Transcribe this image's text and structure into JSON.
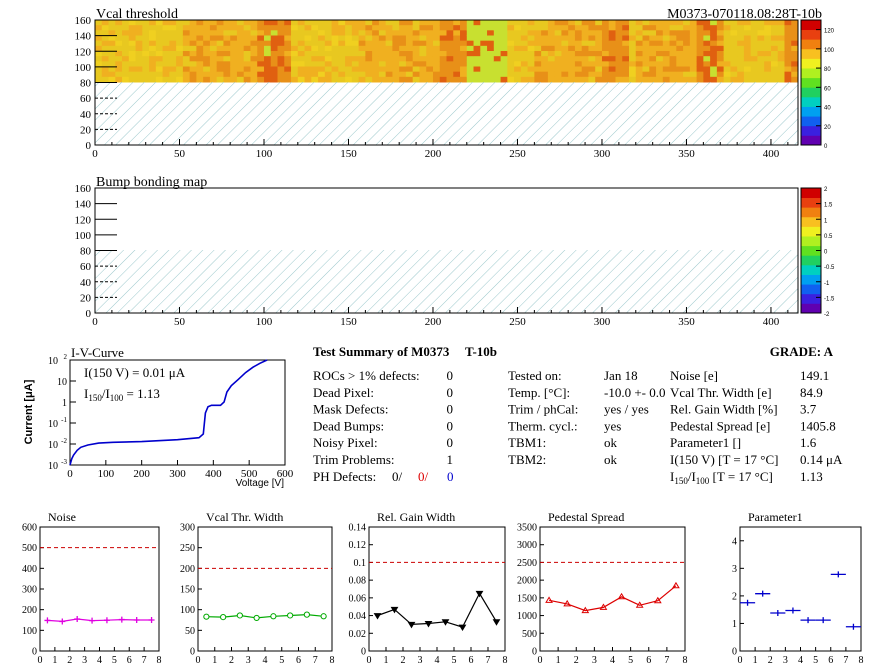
{
  "module_id": "M0373-070118.08:28T-10b",
  "colors": {
    "palette": [
      "#6000b0",
      "#3a20e0",
      "#1060f0",
      "#00a0f0",
      "#00d0c0",
      "#20d060",
      "#60e020",
      "#b0f020",
      "#f0f020",
      "#f8c020",
      "#f08010",
      "#e84010",
      "#d00000"
    ],
    "bump_band": "#20e040",
    "hatch": "#9cc8cc",
    "iv_line": "#0000cc",
    "noise": "#e000e0",
    "vcal": "#00aa00",
    "relgain": "#000000",
    "pedestal": "#dd0000",
    "param1": "#0000cc",
    "limit": "#cc0000"
  },
  "maps": {
    "vcal_title": "Vcal threshold",
    "bump_title": "Bump bonding map",
    "x_ticks": [
      "0",
      "50",
      "100",
      "150",
      "200",
      "250",
      "300",
      "350",
      "400"
    ],
    "y_ticks": [
      "0",
      "20",
      "40",
      "60",
      "80",
      "100",
      "120",
      "140",
      "160"
    ],
    "vcal_scale": [
      "0",
      "20",
      "40",
      "60",
      "80",
      "100",
      "120"
    ],
    "bump_scale": [
      "-2",
      "-1.5",
      "-1",
      "-0.5",
      "0",
      "0.5",
      "1",
      "1.5",
      "2"
    ]
  },
  "summary": {
    "title": "Test Summary of M0373",
    "id": "T-10b",
    "grade": "GRADE:  A",
    "left_rows": [
      {
        "label": "ROCs > 1% defects:",
        "value": "0"
      },
      {
        "label": "Dead Pixel:",
        "value": "0"
      },
      {
        "label": "Mask Defects:",
        "value": "0"
      },
      {
        "label": "Dead Bumps:",
        "value": "0"
      },
      {
        "label": "Noisy Pixel:",
        "value": "0"
      },
      {
        "label": "Trim Problems:",
        "value": "1"
      }
    ],
    "ph_label": "PH Defects:",
    "ph_values": [
      "0/",
      "0/",
      "0"
    ],
    "mid_rows": [
      {
        "label": "Tested on:",
        "value": "Jan 18"
      },
      {
        "label": "Temp. [°C]:",
        "value": "-10.0 +- 0.0"
      },
      {
        "label": "Trim / phCal:",
        "value": "yes / yes"
      },
      {
        "label": "Therm. cycl.:",
        "value": "yes"
      },
      {
        "label": "TBM1:",
        "value": "ok"
      },
      {
        "label": "TBM2:",
        "value": "ok"
      }
    ],
    "right_rows": [
      {
        "label": "Noise [e]",
        "value": "149.1"
      },
      {
        "label": "Vcal Thr. Width [e]",
        "value": "84.9"
      },
      {
        "label": "Rel. Gain Width [%]",
        "value": "3.7"
      },
      {
        "label": "Pedestal Spread [e]",
        "value": "1405.8"
      },
      {
        "label": "Parameter1 []",
        "value": "1.6"
      },
      {
        "label": "I(150 V)  [T = 17 °C]",
        "value": "0.14 μA"
      },
      {
        "label": "I150/I100  [T = 17 °C]",
        "value": "1.13"
      }
    ]
  },
  "chart_data": [
    {
      "type": "line",
      "title": "I-V-Curve",
      "xlabel": "Voltage [V]",
      "ylabel": "Current [μA]",
      "yscale": "log",
      "xlim": [
        0,
        600
      ],
      "ylim": [
        0.001,
        100
      ],
      "x_ticks": [
        "0",
        "100",
        "200",
        "300",
        "400",
        "500",
        "600"
      ],
      "y_ticks": [
        "10^-3",
        "10^-2",
        "10^-1",
        "1",
        "10",
        "10^2"
      ],
      "annotations": [
        "I(150 V) = 0.01 μA",
        "I150/I100 =  1.13"
      ],
      "series": [
        {
          "x": [
            0,
            5,
            10,
            20,
            30,
            50,
            80,
            120,
            200,
            300,
            360,
            372,
            378,
            385,
            395,
            420,
            430,
            438,
            450,
            470,
            490,
            510,
            530,
            550
          ],
          "y": [
            0.001,
            0.002,
            0.003,
            0.005,
            0.007,
            0.009,
            0.011,
            0.012,
            0.013,
            0.016,
            0.02,
            0.03,
            0.3,
            0.6,
            0.7,
            0.7,
            1.0,
            3,
            6,
            12,
            25,
            45,
            70,
            100
          ]
        }
      ]
    },
    {
      "type": "line",
      "title": "Noise",
      "x_ticks": [
        "0",
        "1",
        "2",
        "3",
        "4",
        "5",
        "6",
        "7",
        "8"
      ],
      "y_ticks": [
        "0",
        "100",
        "200",
        "300",
        "400",
        "500",
        "600"
      ],
      "xlim": [
        0,
        8
      ],
      "ylim": [
        0,
        600
      ],
      "limit": 500,
      "x": [
        0.5,
        1.5,
        2.5,
        3.5,
        4.5,
        5.5,
        6.5,
        7.5
      ],
      "values": [
        148,
        143,
        155,
        147,
        149,
        152,
        150,
        150
      ],
      "marker": "cross"
    },
    {
      "type": "line",
      "title": "Vcal Thr. Width",
      "x_ticks": [
        "0",
        "1",
        "2",
        "3",
        "4",
        "5",
        "6",
        "7",
        "8"
      ],
      "y_ticks": [
        "0",
        "50",
        "100",
        "150",
        "200",
        "250",
        "300"
      ],
      "xlim": [
        0,
        8
      ],
      "ylim": [
        0,
        300
      ],
      "limit": 200,
      "x": [
        0.5,
        1.5,
        2.5,
        3.5,
        4.5,
        5.5,
        6.5,
        7.5
      ],
      "values": [
        83,
        82,
        86,
        80,
        84,
        86,
        88,
        84
      ],
      "marker": "circle"
    },
    {
      "type": "line",
      "title": "Rel. Gain Width",
      "x_ticks": [
        "0",
        "1",
        "2",
        "3",
        "4",
        "5",
        "6",
        "7",
        "8"
      ],
      "y_ticks": [
        "0",
        "0.02",
        "0.04",
        "0.06",
        "0.08",
        "0.1",
        "0.12",
        "0.14"
      ],
      "xlim": [
        0,
        8
      ],
      "ylim": [
        0,
        0.14
      ],
      "limit": 0.1,
      "x": [
        0.5,
        1.5,
        2.5,
        3.5,
        4.5,
        5.5,
        6.5,
        7.5
      ],
      "values": [
        0.04,
        0.047,
        0.03,
        0.031,
        0.033,
        0.027,
        0.065,
        0.033
      ],
      "marker": "triangle-down"
    },
    {
      "type": "line",
      "title": "Pedestal Spread",
      "x_ticks": [
        "0",
        "1",
        "2",
        "3",
        "4",
        "5",
        "6",
        "7",
        "8"
      ],
      "y_ticks": [
        "0",
        "500",
        "1000",
        "1500",
        "2000",
        "2500",
        "3000",
        "3500"
      ],
      "xlim": [
        0,
        8
      ],
      "ylim": [
        0,
        3500
      ],
      "limit": 2500,
      "x": [
        0.5,
        1.5,
        2.5,
        3.5,
        4.5,
        5.5,
        6.5,
        7.5
      ],
      "values": [
        1430,
        1330,
        1140,
        1230,
        1530,
        1290,
        1420,
        1840
      ],
      "marker": "triangle-up"
    },
    {
      "type": "scatter",
      "title": "Parameter1",
      "x_ticks": [
        "0",
        "1",
        "2",
        "3",
        "4",
        "5",
        "6",
        "7",
        "8"
      ],
      "y_ticks": [
        "0",
        "1",
        "2",
        "3",
        "4"
      ],
      "xlim": [
        0,
        8
      ],
      "ylim": [
        0,
        4.5
      ],
      "x": [
        0.5,
        1.5,
        2.5,
        3.5,
        4.5,
        5.5,
        6.5,
        7.5
      ],
      "values": [
        1.75,
        2.08,
        1.38,
        1.47,
        1.12,
        1.12,
        2.78,
        0.88
      ],
      "marker": "cross"
    }
  ]
}
